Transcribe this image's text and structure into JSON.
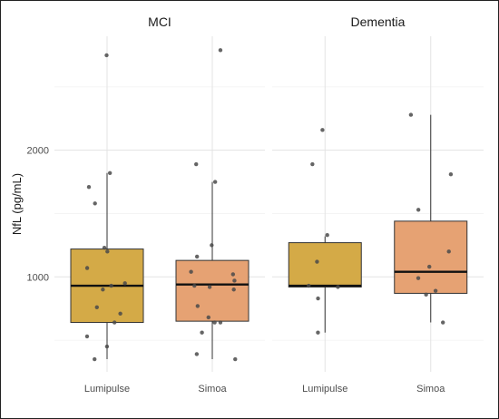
{
  "chart_data": {
    "type": "box",
    "ylabel": "NfL (pg/mL)",
    "y_ticks": [
      1000,
      2000
    ],
    "y_tick_labels": [
      "1000",
      "2000"
    ],
    "ylim": [
      250,
      2900
    ],
    "grid": true,
    "legend": "none",
    "panels": [
      {
        "label": "MCI",
        "groups": [
          {
            "name": "Lumipulse",
            "color": "#d4aa47",
            "stats": {
              "whisker_low": 350,
              "q1": 640,
              "median": 930,
              "q3": 1220,
              "whisker_high": 1820
            },
            "points": [
              2750,
              1820,
              1710,
              1580,
              1230,
              1200,
              1070,
              950,
              930,
              900,
              760,
              710,
              640,
              530,
              450,
              350
            ]
          },
          {
            "name": "Simoa",
            "color": "#e6a273",
            "stats": {
              "whisker_low": 350,
              "q1": 650,
              "median": 940,
              "q3": 1130,
              "whisker_high": 1750
            },
            "points": [
              2790,
              1890,
              1750,
              1250,
              1160,
              1040,
              1020,
              970,
              930,
              920,
              900,
              770,
              680,
              640,
              640,
              560,
              390,
              350
            ]
          }
        ]
      },
      {
        "label": "Dementia",
        "groups": [
          {
            "name": "Lumipulse",
            "color": "#d4aa47",
            "stats": {
              "whisker_low": 560,
              "q1": 920,
              "median": 930,
              "q3": 1270,
              "whisker_high": 1320
            },
            "points": [
              2160,
              1890,
              1330,
              1120,
              930,
              920,
              830,
              560
            ]
          },
          {
            "name": "Simoa",
            "color": "#e6a273",
            "stats": {
              "whisker_low": 640,
              "q1": 870,
              "median": 1040,
              "q3": 1440,
              "whisker_high": 2280
            },
            "points": [
              2280,
              1810,
              1530,
              1200,
              1080,
              990,
              890,
              860,
              640
            ]
          }
        ]
      }
    ]
  }
}
